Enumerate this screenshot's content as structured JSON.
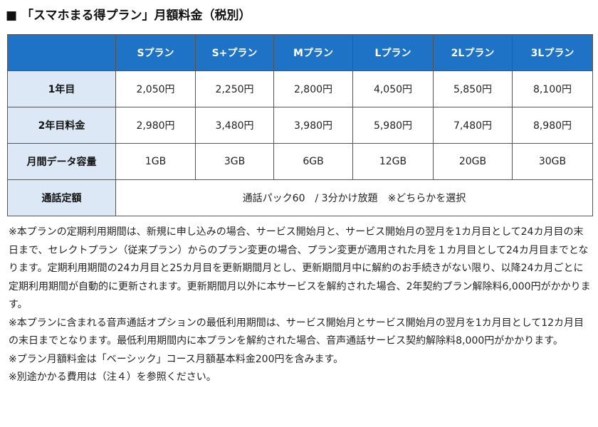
{
  "title": "■ 「スマホまる得プラン」月額料金（税別）",
  "colors": {
    "header_bg": "#1f73c7",
    "label_bg": "#dde8f6",
    "border": "#555555"
  },
  "table": {
    "columns": [
      "",
      "Sプラン",
      "S+プラン",
      "Mプラン",
      "Lプラン",
      "2Lプラン",
      "3Lプラン"
    ],
    "rows": [
      {
        "label": "1年目",
        "cells": [
          "2,050円",
          "2,250円",
          "2,800円",
          "4,050円",
          "5,850円",
          "8,100円"
        ]
      },
      {
        "label": "2年目料金",
        "cells": [
          "2,980円",
          "3,480円",
          "3,980円",
          "5,980円",
          "7,480円",
          "8,980円"
        ]
      },
      {
        "label": "月間データ容量",
        "cells": [
          "1GB",
          "3GB",
          "6GB",
          "12GB",
          "20GB",
          "30GB"
        ]
      }
    ],
    "call_row": {
      "label": "通話定額",
      "value": "通話パック60　/ 3分かけ放題　※どちらかを選択"
    }
  },
  "notes": [
    "※本プランの定期利用期間は、新規に申し込みの場合、サービス開始月と、サービス開始月の翌月を1カ月目として24カ月目の末日まで、セレクトプラン（従来プラン）からのプラン変更の場合、プラン変更が適用された月を１カ月目として24カ月目までとなります。定期利用期間の24カ月目と25カ月目を更新期間月とし、更新期間月中に解約のお手続きがない限り、以降24カ月ごとに定期利用期間が自動的に更新されます。更新期間月以外に本サービスを解約された場合、2年契約プラン解除料6,000円がかかります。",
    "※本プランに含まれる音声通話オプションの最低利用期間は、サービス開始月とサービス開始月の翌月を1カ月目として12カ月目の末日までとなります。最低利用期間内に本プランを解約された場合、音声通話サービス契約解除料8,000円がかかります。",
    "※プラン月額料金は「ベーシック」コース月額基本料金200円を含みます。",
    "※別途かかる費用は（注４）を参照ください。"
  ]
}
